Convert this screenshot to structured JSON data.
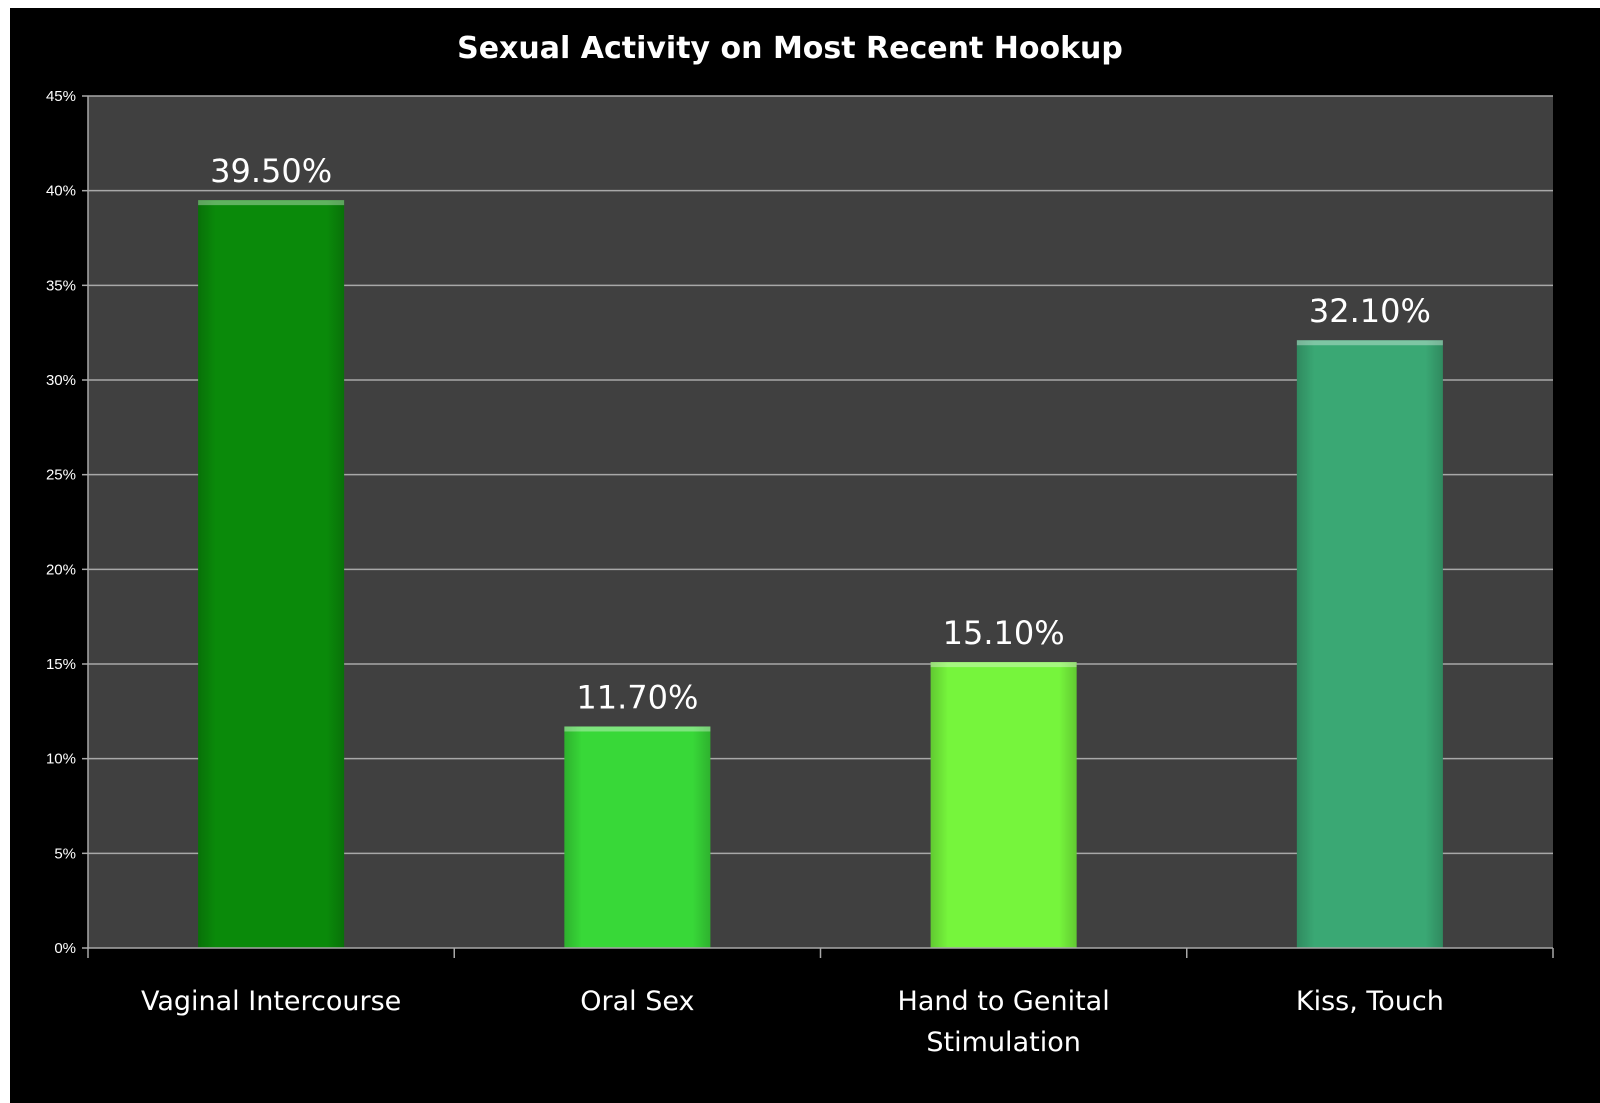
{
  "chart_data": {
    "type": "bar",
    "title": "Sexual Activity on Most Recent Hookup",
    "categories": [
      "Vaginal Intercourse",
      "Oral Sex",
      "Hand to Genital Stimulation",
      "Kiss, Touch"
    ],
    "category_lines": [
      [
        "Vaginal Intercourse"
      ],
      [
        "Oral Sex"
      ],
      [
        "Hand to Genital",
        "Stimulation"
      ],
      [
        "Kiss, Touch"
      ]
    ],
    "values": [
      39.5,
      11.7,
      15.1,
      32.1
    ],
    "data_labels": [
      "39.50%",
      "11.70%",
      "15.10%",
      "32.10%"
    ],
    "bar_colors": [
      "#0a8a0a",
      "#38d838",
      "#76f53c",
      "#3aa874"
    ],
    "ylim": [
      0,
      45
    ],
    "yticks": [
      0,
      5,
      10,
      15,
      20,
      25,
      30,
      35,
      40,
      45
    ],
    "ytick_labels": [
      "0%",
      "5%",
      "10%",
      "15%",
      "20%",
      "25%",
      "30%",
      "35%",
      "40%",
      "45%"
    ],
    "xlabel": "",
    "ylabel": "",
    "grid": true,
    "legend": "none",
    "colors": {
      "background": "#000000",
      "plot_area": "#404040",
      "gridline": "#a8a8a8",
      "text": "#ffffff"
    }
  }
}
